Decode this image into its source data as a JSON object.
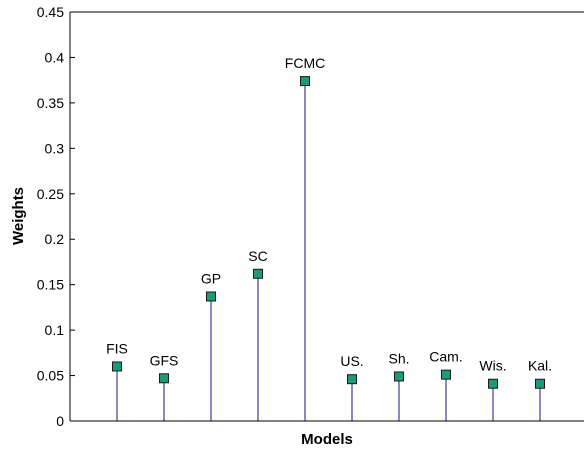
{
  "chart_data": {
    "type": "stem",
    "title": "",
    "xlabel": "Models",
    "ylabel": "Weights",
    "ylim": [
      0,
      0.45
    ],
    "yticks": [
      "0",
      "0.05",
      "0.1",
      "0.15",
      "0.2",
      "0.25",
      "0.3",
      "0.35",
      "0.4",
      "0.45"
    ],
    "grid": false,
    "legend": "none",
    "categories": [
      "FIS",
      "GFS",
      "GP",
      "SC",
      "FCMC",
      "US.",
      "Sh.",
      "Cam.",
      "Wis.",
      "Kal."
    ],
    "values": [
      0.06,
      0.047,
      0.137,
      0.162,
      0.374,
      0.046,
      0.049,
      0.051,
      0.041,
      0.041
    ],
    "colors": {
      "stem": "#4a4aa8",
      "marker_fill": "#1e9a78",
      "marker_edge": "#1a1a1a",
      "axis": "#000000"
    }
  }
}
